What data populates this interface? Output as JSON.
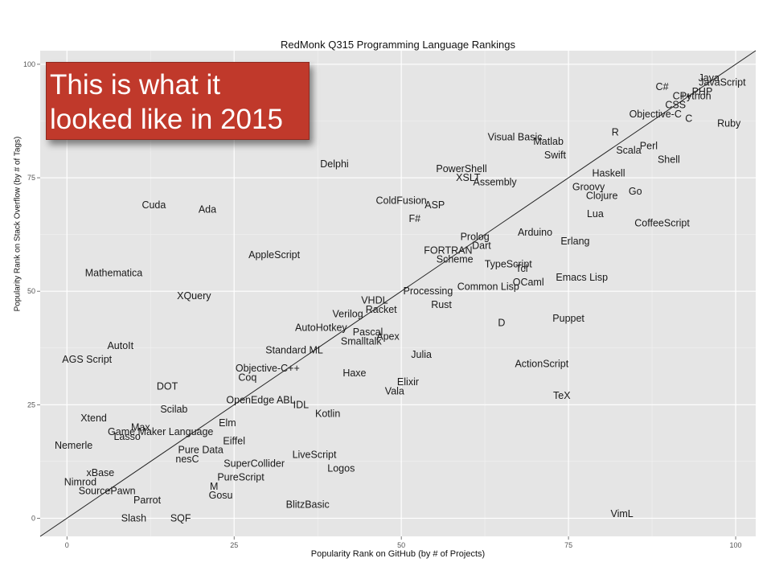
{
  "chart_data": {
    "type": "scatter",
    "title": "RedMonk Q315 Programming Language Rankings",
    "xlabel": "Popularity Rank on GitHub (by # of Projects)",
    "ylabel": "Popularity Rank on Stack Overflow (by # of Tags)",
    "xlim": [
      -4,
      103
    ],
    "ylim": [
      -4,
      103
    ],
    "x_ticks": [
      0,
      25,
      50,
      75,
      100
    ],
    "y_ticks": [
      0,
      25,
      50,
      75,
      100
    ],
    "grid": true,
    "trend_line": "diagonal fit line",
    "points": [
      {
        "label": "Java",
        "x": 96,
        "y": 97
      },
      {
        "label": "JavaScript",
        "x": 98,
        "y": 96
      },
      {
        "label": "PHP",
        "x": 95,
        "y": 94
      },
      {
        "label": "C#",
        "x": 89,
        "y": 95
      },
      {
        "label": "C++",
        "x": 92,
        "y": 93
      },
      {
        "label": "Python",
        "x": 94,
        "y": 93
      },
      {
        "label": "CSS",
        "x": 91,
        "y": 91
      },
      {
        "label": "Objective-C",
        "x": 88,
        "y": 89
      },
      {
        "label": "C",
        "x": 93,
        "y": 88
      },
      {
        "label": "Ruby",
        "x": 99,
        "y": 87
      },
      {
        "label": "R",
        "x": 82,
        "y": 85
      },
      {
        "label": "Visual Basic",
        "x": 67,
        "y": 84
      },
      {
        "label": "Matlab",
        "x": 72,
        "y": 83
      },
      {
        "label": "Perl",
        "x": 87,
        "y": 82
      },
      {
        "label": "Scala",
        "x": 84,
        "y": 81
      },
      {
        "label": "Swift",
        "x": 73,
        "y": 80
      },
      {
        "label": "Shell",
        "x": 90,
        "y": 79
      },
      {
        "label": "Delphi",
        "x": 40,
        "y": 78
      },
      {
        "label": "PowerShell",
        "x": 59,
        "y": 77
      },
      {
        "label": "Haskell",
        "x": 81,
        "y": 76
      },
      {
        "label": "XSLT",
        "x": 60,
        "y": 75
      },
      {
        "label": "Assembly",
        "x": 64,
        "y": 74
      },
      {
        "label": "Groovy",
        "x": 78,
        "y": 73
      },
      {
        "label": "Go",
        "x": 85,
        "y": 72
      },
      {
        "label": "Clojure",
        "x": 80,
        "y": 71
      },
      {
        "label": "ColdFusion",
        "x": 50,
        "y": 70
      },
      {
        "label": "ASP",
        "x": 55,
        "y": 69
      },
      {
        "label": "Cuda",
        "x": 13,
        "y": 69
      },
      {
        "label": "Ada",
        "x": 21,
        "y": 68
      },
      {
        "label": "Lua",
        "x": 79,
        "y": 67
      },
      {
        "label": "F#",
        "x": 52,
        "y": 66
      },
      {
        "label": "CoffeeScript",
        "x": 89,
        "y": 65
      },
      {
        "label": "Arduino",
        "x": 70,
        "y": 63
      },
      {
        "label": "Prolog",
        "x": 61,
        "y": 62
      },
      {
        "label": "Erlang",
        "x": 76,
        "y": 61
      },
      {
        "label": "Dart",
        "x": 62,
        "y": 60
      },
      {
        "label": "FORTRAN",
        "x": 57,
        "y": 59
      },
      {
        "label": "AppleScript",
        "x": 31,
        "y": 58
      },
      {
        "label": "Scheme",
        "x": 58,
        "y": 57
      },
      {
        "label": "TypeScript",
        "x": 66,
        "y": 56
      },
      {
        "label": "Tcl",
        "x": 68,
        "y": 55
      },
      {
        "label": "Mathematica",
        "x": 7,
        "y": 54
      },
      {
        "label": "Emacs Lisp",
        "x": 77,
        "y": 53
      },
      {
        "label": "OCaml",
        "x": 69,
        "y": 52
      },
      {
        "label": "Common Lisp",
        "x": 63,
        "y": 51
      },
      {
        "label": "Processing",
        "x": 54,
        "y": 50
      },
      {
        "label": "XQuery",
        "x": 19,
        "y": 49
      },
      {
        "label": "VHDL",
        "x": 46,
        "y": 48
      },
      {
        "label": "Rust",
        "x": 56,
        "y": 47
      },
      {
        "label": "Racket",
        "x": 47,
        "y": 46
      },
      {
        "label": "Verilog",
        "x": 42,
        "y": 45
      },
      {
        "label": "Puppet",
        "x": 75,
        "y": 44
      },
      {
        "label": "D",
        "x": 65,
        "y": 43
      },
      {
        "label": "AutoHotkey",
        "x": 38,
        "y": 42
      },
      {
        "label": "Pascal",
        "x": 45,
        "y": 41
      },
      {
        "label": "Apex",
        "x": 48,
        "y": 40
      },
      {
        "label": "Smalltalk",
        "x": 44,
        "y": 39
      },
      {
        "label": "AutoIt",
        "x": 8,
        "y": 38
      },
      {
        "label": "Standard ML",
        "x": 34,
        "y": 37
      },
      {
        "label": "Julia",
        "x": 53,
        "y": 36
      },
      {
        "label": "AGS Script",
        "x": 3,
        "y": 35
      },
      {
        "label": "ActionScript",
        "x": 71,
        "y": 34
      },
      {
        "label": "Objective-C++",
        "x": 30,
        "y": 33
      },
      {
        "label": "Haxe",
        "x": 43,
        "y": 32
      },
      {
        "label": "Coq",
        "x": 27,
        "y": 31
      },
      {
        "label": "Elixir",
        "x": 51,
        "y": 30
      },
      {
        "label": "DOT",
        "x": 15,
        "y": 29
      },
      {
        "label": "Vala",
        "x": 49,
        "y": 28
      },
      {
        "label": "TeX",
        "x": 74,
        "y": 27
      },
      {
        "label": "OpenEdge ABL",
        "x": 29,
        "y": 26
      },
      {
        "label": "IDL",
        "x": 35,
        "y": 25
      },
      {
        "label": "Scilab",
        "x": 16,
        "y": 24
      },
      {
        "label": "Kotlin",
        "x": 39,
        "y": 23
      },
      {
        "label": "Xtend",
        "x": 4,
        "y": 22
      },
      {
        "label": "Elm",
        "x": 24,
        "y": 21
      },
      {
        "label": "Max",
        "x": 11,
        "y": 20
      },
      {
        "label": "Game Maker Language",
        "x": 14,
        "y": 19
      },
      {
        "label": "Lasso",
        "x": 9,
        "y": 18
      },
      {
        "label": "Eiffel",
        "x": 25,
        "y": 17
      },
      {
        "label": "Nemerle",
        "x": 1,
        "y": 16
      },
      {
        "label": "Pure Data",
        "x": 20,
        "y": 15
      },
      {
        "label": "LiveScript",
        "x": 37,
        "y": 14
      },
      {
        "label": "nesC",
        "x": 18,
        "y": 13
      },
      {
        "label": "SuperCollider",
        "x": 28,
        "y": 12
      },
      {
        "label": "Logos",
        "x": 41,
        "y": 11
      },
      {
        "label": "xBase",
        "x": 5,
        "y": 10
      },
      {
        "label": "PureScript",
        "x": 26,
        "y": 9
      },
      {
        "label": "Nimrod",
        "x": 2,
        "y": 8
      },
      {
        "label": "M",
        "x": 22,
        "y": 7
      },
      {
        "label": "SourcePawn",
        "x": 6,
        "y": 6
      },
      {
        "label": "Gosu",
        "x": 23,
        "y": 5
      },
      {
        "label": "Parrot",
        "x": 12,
        "y": 4
      },
      {
        "label": "BlitzBasic",
        "x": 36,
        "y": 3
      },
      {
        "label": "VimL",
        "x": 83,
        "y": 1
      },
      {
        "label": "Slash",
        "x": 10,
        "y": 0
      },
      {
        "label": "SQF",
        "x": 17,
        "y": 0
      }
    ]
  },
  "overlay": {
    "line1": "This is what it",
    "line2": "looked like in 2015",
    "color": "#c0392b"
  }
}
